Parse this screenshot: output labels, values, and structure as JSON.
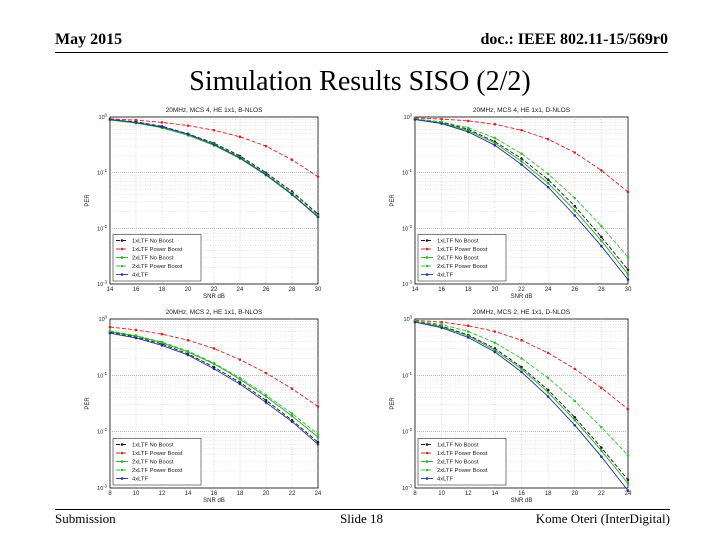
{
  "header": {
    "date": "May 2015",
    "doc": "doc.: IEEE 802.11-15/569r0"
  },
  "slide_title": "Simulation Results SISO (2/2)",
  "footer": {
    "left": "Submission",
    "center": "Slide 18",
    "right": "Kome Oteri (InterDigital)"
  },
  "colors": {
    "grid": "#bdbdbd",
    "axis": "#000000"
  },
  "chart_data": [
    {
      "type": "line",
      "title": "20MHz, MCS 4, HE 1x1, B-NLOS",
      "xlabel": "SNR dB",
      "ylabel": "PER",
      "xlim": [
        14,
        30
      ],
      "ylim_log10": [
        -3,
        0
      ],
      "x_ticks": [
        "14",
        "16",
        "18",
        "20",
        "22",
        "24",
        "26",
        "28",
        "30"
      ],
      "y_ticks": [
        "10^0",
        "10^-1",
        "10^-2",
        "10^-3"
      ],
      "grid": true,
      "legend_position": "bottom-left",
      "x": [
        14,
        16,
        18,
        20,
        22,
        24,
        26,
        28,
        30
      ],
      "series": [
        {
          "name": "1xLTF No Boost",
          "color": "#1a1a1a",
          "dash": "4,2",
          "values": [
            0.9,
            0.82,
            0.68,
            0.5,
            0.34,
            0.2,
            0.1,
            0.046,
            0.018
          ]
        },
        {
          "name": "1xLTF Power Boost",
          "color": "#e02020",
          "dash": "4,2",
          "values": [
            0.93,
            0.88,
            0.8,
            0.7,
            0.58,
            0.44,
            0.3,
            0.17,
            0.085
          ]
        },
        {
          "name": "2xLTF No Boost",
          "color": "#20b020",
          "dash": "",
          "values": [
            0.88,
            0.78,
            0.64,
            0.47,
            0.31,
            0.18,
            0.09,
            0.04,
            0.016
          ]
        },
        {
          "name": "2xLTF Power Boost",
          "color": "#30c030",
          "dash": "4,2",
          "values": [
            0.89,
            0.8,
            0.66,
            0.49,
            0.33,
            0.19,
            0.095,
            0.043,
            0.017
          ]
        },
        {
          "name": "4xLTF",
          "color": "#2030a0",
          "dash": "",
          "values": [
            0.9,
            0.8,
            0.66,
            0.49,
            0.32,
            0.185,
            0.092,
            0.041,
            0.016
          ]
        }
      ]
    },
    {
      "type": "line",
      "title": "20MHz, MCS 4, HE 1x1, D-NLOS",
      "xlabel": "SNR dB",
      "ylabel": "PER",
      "xlim": [
        14,
        30
      ],
      "ylim_log10": [
        -3,
        0
      ],
      "x_ticks": [
        "14",
        "16",
        "18",
        "20",
        "22",
        "24",
        "26",
        "28",
        "30"
      ],
      "y_ticks": [
        "10^0",
        "10^-1",
        "10^-2",
        "10^-3"
      ],
      "grid": true,
      "legend_position": "bottom-left",
      "x": [
        14,
        16,
        18,
        20,
        22,
        24,
        26,
        28,
        30
      ],
      "series": [
        {
          "name": "1xLTF No Boost",
          "color": "#1a1a1a",
          "dash": "4,2",
          "values": [
            0.92,
            0.8,
            0.6,
            0.36,
            0.18,
            0.075,
            0.025,
            0.007,
            0.0018
          ]
        },
        {
          "name": "1xLTF Power Boost",
          "color": "#e02020",
          "dash": "4,2",
          "values": [
            0.96,
            0.92,
            0.85,
            0.74,
            0.58,
            0.4,
            0.23,
            0.11,
            0.045
          ]
        },
        {
          "name": "2xLTF No Boost",
          "color": "#20b020",
          "dash": "",
          "values": [
            0.91,
            0.78,
            0.57,
            0.34,
            0.16,
            0.065,
            0.021,
            0.006,
            0.0015
          ]
        },
        {
          "name": "2xLTF Power Boost",
          "color": "#30c030",
          "dash": "4,2",
          "values": [
            0.93,
            0.82,
            0.64,
            0.42,
            0.22,
            0.095,
            0.035,
            0.011,
            0.003
          ]
        },
        {
          "name": "4xLTF",
          "color": "#2030a0",
          "dash": "",
          "values": [
            0.9,
            0.76,
            0.54,
            0.31,
            0.14,
            0.055,
            0.017,
            0.0048,
            0.0012
          ]
        }
      ]
    },
    {
      "type": "line",
      "title": "20MHz, MCS 2, HE 1x1, B-NLOS",
      "xlabel": "SNR dB",
      "ylabel": "PER",
      "xlim": [
        8,
        24
      ],
      "ylim_log10": [
        -3,
        0
      ],
      "x_ticks": [
        "8",
        "10",
        "12",
        "14",
        "16",
        "18",
        "20",
        "22",
        "24"
      ],
      "y_ticks": [
        "10^0",
        "10^-1",
        "10^-2",
        "10^-3"
      ],
      "grid": true,
      "legend_position": "bottom-left",
      "x": [
        8,
        10,
        12,
        14,
        16,
        18,
        20,
        22,
        24
      ],
      "series": [
        {
          "name": "1xLTF No Boost",
          "color": "#1a1a1a",
          "dash": "4,2",
          "values": [
            0.58,
            0.48,
            0.36,
            0.24,
            0.14,
            0.075,
            0.036,
            0.016,
            0.0065
          ]
        },
        {
          "name": "1xLTF Power Boost",
          "color": "#e02020",
          "dash": "4,2",
          "values": [
            0.72,
            0.64,
            0.54,
            0.42,
            0.3,
            0.19,
            0.11,
            0.058,
            0.028
          ]
        },
        {
          "name": "2xLTF No Boost",
          "color": "#20b020",
          "dash": "",
          "values": [
            0.6,
            0.5,
            0.38,
            0.26,
            0.16,
            0.085,
            0.042,
            0.019,
            0.008
          ]
        },
        {
          "name": "2xLTF Power Boost",
          "color": "#30c030",
          "dash": "4,2",
          "values": [
            0.61,
            0.51,
            0.39,
            0.27,
            0.165,
            0.09,
            0.045,
            0.021,
            0.009
          ]
        },
        {
          "name": "4xLTF",
          "color": "#2030a0",
          "dash": "",
          "values": [
            0.56,
            0.46,
            0.34,
            0.23,
            0.13,
            0.07,
            0.033,
            0.015,
            0.006
          ]
        }
      ]
    },
    {
      "type": "line",
      "title": "20MHz, MCS 2, HE 1x1, D-NLOS",
      "xlabel": "SNR dB",
      "ylabel": "PER",
      "xlim": [
        8,
        24
      ],
      "ylim_log10": [
        -3,
        0
      ],
      "x_ticks": [
        "8",
        "10",
        "12",
        "14",
        "16",
        "18",
        "20",
        "22",
        "24"
      ],
      "y_ticks": [
        "10^0",
        "10^-1",
        "10^-2",
        "10^-3"
      ],
      "grid": true,
      "legend_position": "bottom-left",
      "x": [
        8,
        10,
        12,
        14,
        16,
        18,
        20,
        22,
        24
      ],
      "series": [
        {
          "name": "1xLTF No Boost",
          "color": "#1a1a1a",
          "dash": "4,2",
          "values": [
            0.9,
            0.75,
            0.52,
            0.3,
            0.14,
            0.055,
            0.018,
            0.0052,
            0.0014
          ]
        },
        {
          "name": "1xLTF Power Boost",
          "color": "#e02020",
          "dash": "4,2",
          "values": [
            0.95,
            0.88,
            0.76,
            0.6,
            0.42,
            0.25,
            0.13,
            0.06,
            0.025
          ]
        },
        {
          "name": "2xLTF No Boost",
          "color": "#20b020",
          "dash": "",
          "values": [
            0.89,
            0.73,
            0.5,
            0.28,
            0.13,
            0.05,
            0.016,
            0.0046,
            0.0012
          ]
        },
        {
          "name": "2xLTF Power Boost",
          "color": "#30c030",
          "dash": "4,2",
          "values": [
            0.92,
            0.8,
            0.6,
            0.38,
            0.2,
            0.09,
            0.035,
            0.012,
            0.0038
          ]
        },
        {
          "name": "4xLTF",
          "color": "#2030a0",
          "dash": "",
          "values": [
            0.88,
            0.7,
            0.47,
            0.26,
            0.115,
            0.042,
            0.013,
            0.0036,
            0.0009
          ]
        }
      ]
    }
  ]
}
